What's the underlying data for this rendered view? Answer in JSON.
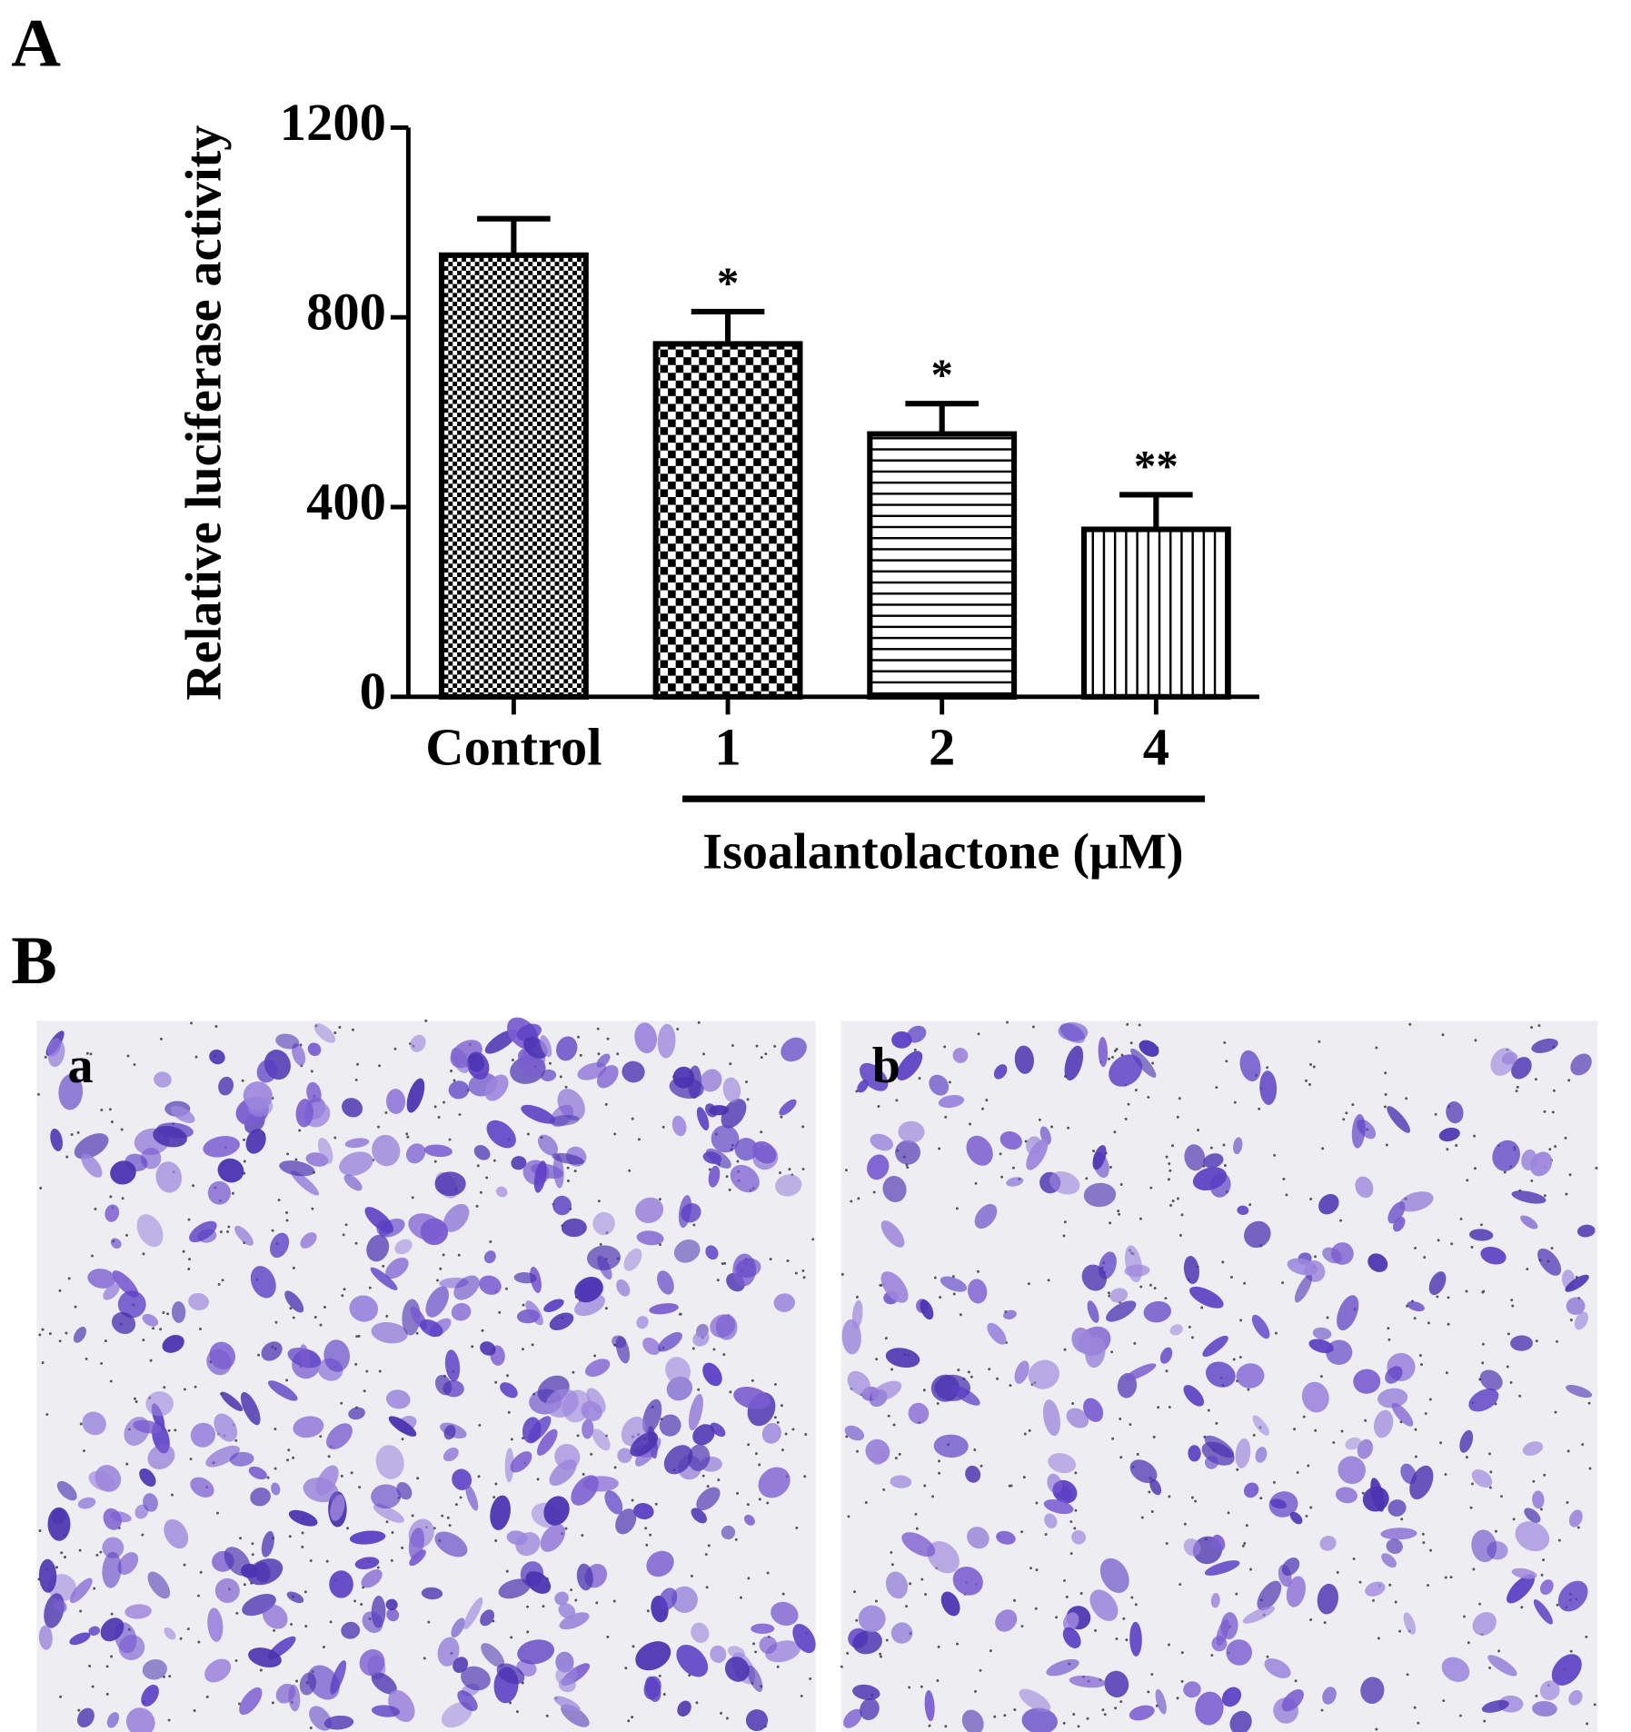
{
  "panel_labels": [
    "A",
    "B"
  ],
  "chart_data": {
    "type": "bar",
    "y_label": "Relative luciferase activity",
    "x_group_label": "Isoalantolactone (μM)",
    "categories": [
      "Control",
      "1",
      "2",
      "4"
    ],
    "values": [
      931,
      744,
      554,
      353
    ],
    "errors": [
      77,
      68,
      64,
      73
    ],
    "significance": [
      null,
      "*",
      "*",
      "**"
    ],
    "fill_patterns": [
      "fine-checker",
      "checker",
      "horizontal",
      "vertical"
    ],
    "color": "#000000",
    "ylim": [
      0,
      1200
    ],
    "yticks": [
      0,
      400,
      800,
      1200
    ],
    "grid": false
  },
  "micrographs": [
    {
      "label": "a"
    },
    {
      "label": "b"
    }
  ]
}
